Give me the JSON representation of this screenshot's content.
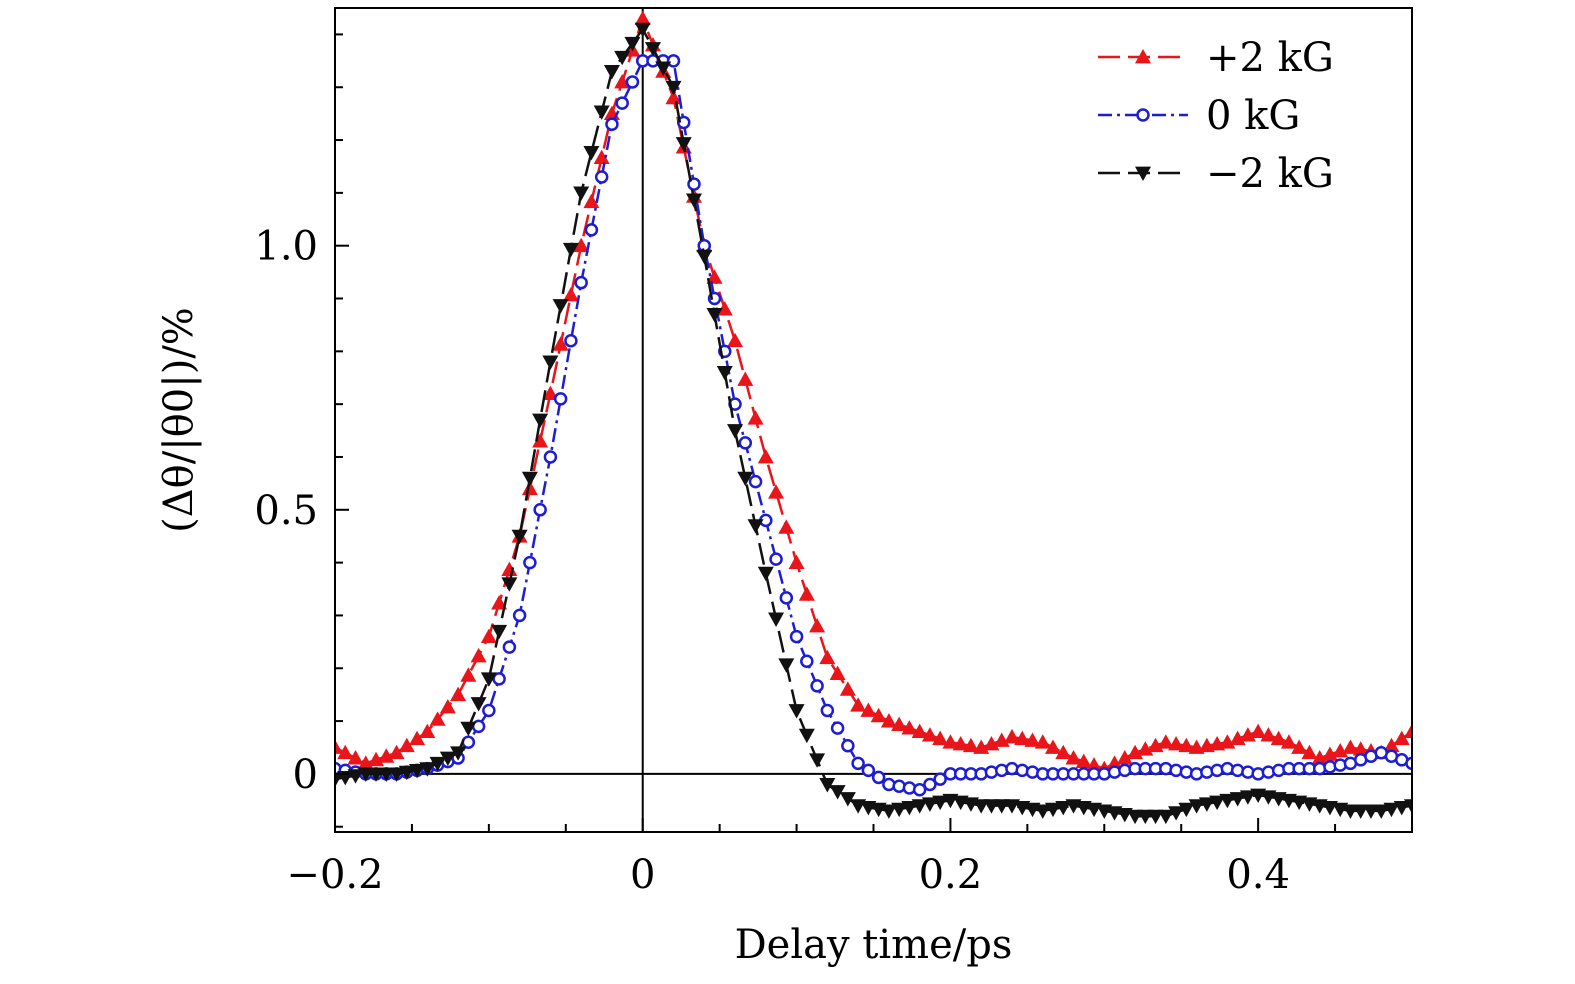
{
  "chart_data": {
    "type": "line",
    "title": "",
    "xlabel": "Delay time/ps",
    "ylabel": "(Δθ/|θ0|)/%",
    "xlim": [
      -0.2,
      0.5
    ],
    "ylim": [
      -0.11,
      1.45
    ],
    "x_ticks": [
      {
        "value": -0.2,
        "label": "−0.2"
      },
      {
        "value": 0,
        "label": "0"
      },
      {
        "value": 0.2,
        "label": "0.2"
      },
      {
        "value": 0.4,
        "label": "0.4"
      }
    ],
    "y_ticks": [
      {
        "value": 0,
        "label": "0"
      },
      {
        "value": 0.5,
        "label": "0.5"
      },
      {
        "value": 1.0,
        "label": "1.0"
      }
    ],
    "legend_position": "top-right",
    "series": [
      {
        "name": "+2 kG",
        "color": "#e8151b",
        "marker": "triangle-up",
        "dash": "long-dash",
        "x": [
          -0.2,
          -0.18,
          -0.16,
          -0.14,
          -0.12,
          -0.1,
          -0.08,
          -0.06,
          -0.04,
          -0.02,
          0,
          0.02,
          0.04,
          0.06,
          0.08,
          0.1,
          0.12,
          0.14,
          0.16,
          0.18,
          0.2,
          0.22,
          0.24,
          0.26,
          0.28,
          0.3,
          0.32,
          0.34,
          0.36,
          0.38,
          0.4,
          0.42,
          0.44,
          0.46,
          0.48,
          0.5
        ],
        "y": [
          0.05,
          0.02,
          0.04,
          0.08,
          0.15,
          0.26,
          0.45,
          0.72,
          1.0,
          1.25,
          1.43,
          1.28,
          1.0,
          0.82,
          0.6,
          0.4,
          0.22,
          0.13,
          0.1,
          0.08,
          0.06,
          0.05,
          0.07,
          0.06,
          0.03,
          0.01,
          0.04,
          0.06,
          0.05,
          0.06,
          0.08,
          0.06,
          0.03,
          0.05,
          0.04,
          0.08
        ]
      },
      {
        "name": "0 kG",
        "color": "#1d1dd6",
        "marker": "circle-open",
        "dash": "dash-dot",
        "x": [
          -0.2,
          -0.18,
          -0.16,
          -0.14,
          -0.12,
          -0.1,
          -0.08,
          -0.06,
          -0.04,
          -0.02,
          0,
          0.02,
          0.04,
          0.06,
          0.08,
          0.1,
          0.12,
          0.14,
          0.16,
          0.18,
          0.2,
          0.22,
          0.24,
          0.26,
          0.28,
          0.3,
          0.32,
          0.34,
          0.36,
          0.38,
          0.4,
          0.42,
          0.44,
          0.46,
          0.48,
          0.5
        ],
        "y": [
          0.01,
          0.0,
          0.0,
          0.01,
          0.03,
          0.12,
          0.3,
          0.6,
          0.93,
          1.23,
          1.35,
          1.35,
          1.0,
          0.7,
          0.48,
          0.26,
          0.12,
          0.02,
          -0.02,
          -0.03,
          0.0,
          0.0,
          0.01,
          0.0,
          0.0,
          0.0,
          0.01,
          0.01,
          0.0,
          0.01,
          0.0,
          0.01,
          0.01,
          0.02,
          0.04,
          0.02
        ]
      },
      {
        "name": "−2 kG",
        "color": "#111111",
        "marker": "triangle-down",
        "dash": "long-dash",
        "x": [
          -0.2,
          -0.18,
          -0.16,
          -0.14,
          -0.12,
          -0.1,
          -0.08,
          -0.06,
          -0.04,
          -0.02,
          0,
          0.02,
          0.04,
          0.06,
          0.08,
          0.1,
          0.12,
          0.14,
          0.16,
          0.18,
          0.2,
          0.22,
          0.24,
          0.26,
          0.28,
          0.3,
          0.32,
          0.34,
          0.36,
          0.38,
          0.4,
          0.42,
          0.44,
          0.46,
          0.48,
          0.5
        ],
        "y": [
          -0.01,
          0.0,
          0.0,
          0.01,
          0.04,
          0.18,
          0.45,
          0.78,
          1.1,
          1.33,
          1.41,
          1.3,
          0.98,
          0.65,
          0.38,
          0.12,
          -0.02,
          -0.06,
          -0.07,
          -0.06,
          -0.05,
          -0.06,
          -0.06,
          -0.07,
          -0.06,
          -0.07,
          -0.08,
          -0.08,
          -0.06,
          -0.05,
          -0.04,
          -0.05,
          -0.06,
          -0.07,
          -0.07,
          -0.06
        ]
      }
    ]
  }
}
